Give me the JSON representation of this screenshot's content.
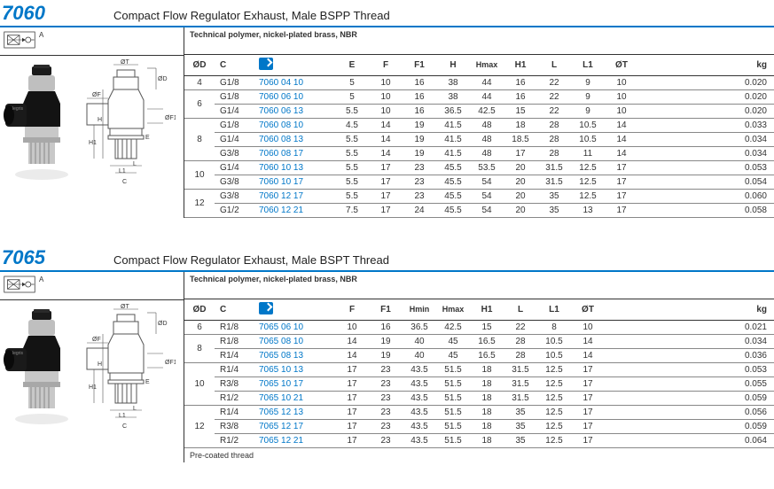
{
  "colors": {
    "accent": "#0077c8",
    "rule": "#333333"
  },
  "sections": [
    {
      "series": "7060",
      "title": "Compact Flow Regulator Exhaust, Male BSPP Thread",
      "material": "Technical polymer, nickel-plated brass, NBR",
      "columns": [
        "ØD",
        "C",
        "",
        "E",
        "F",
        "F1",
        "H",
        "H\nmax",
        "H1",
        "L",
        "L1",
        "ØT",
        "kg"
      ],
      "footnote": "",
      "groups": [
        {
          "od": "4",
          "rows": [
            [
              "G1/8",
              "7060 04 10",
              "5",
              "10",
              "16",
              "38",
              "44",
              "16",
              "22",
              "9",
              "10",
              "0.020"
            ]
          ]
        },
        {
          "od": "6",
          "rows": [
            [
              "G1/8",
              "7060 06 10",
              "5",
              "10",
              "16",
              "38",
              "44",
              "16",
              "22",
              "9",
              "10",
              "0.020"
            ],
            [
              "G1/4",
              "7060 06 13",
              "5.5",
              "10",
              "16",
              "36.5",
              "42.5",
              "15",
              "22",
              "9",
              "10",
              "0.020"
            ]
          ]
        },
        {
          "od": "8",
          "rows": [
            [
              "G1/8",
              "7060 08 10",
              "4.5",
              "14",
              "19",
              "41.5",
              "48",
              "18",
              "28",
              "10.5",
              "14",
              "0.033"
            ],
            [
              "G1/4",
              "7060 08 13",
              "5.5",
              "14",
              "19",
              "41.5",
              "48",
              "18.5",
              "28",
              "10.5",
              "14",
              "0.034"
            ],
            [
              "G3/8",
              "7060 08 17",
              "5.5",
              "14",
              "19",
              "41.5",
              "48",
              "17",
              "28",
              "11",
              "14",
              "0.034"
            ]
          ]
        },
        {
          "od": "10",
          "rows": [
            [
              "G1/4",
              "7060 10 13",
              "5.5",
              "17",
              "23",
              "45.5",
              "53.5",
              "20",
              "31.5",
              "12.5",
              "17",
              "0.053"
            ],
            [
              "G3/8",
              "7060 10 17",
              "5.5",
              "17",
              "23",
              "45.5",
              "54",
              "20",
              "31.5",
              "12.5",
              "17",
              "0.054"
            ]
          ]
        },
        {
          "od": "12",
          "rows": [
            [
              "G3/8",
              "7060 12 17",
              "5.5",
              "17",
              "23",
              "45.5",
              "54",
              "20",
              "35",
              "12.5",
              "17",
              "0.060"
            ],
            [
              "G1/2",
              "7060 12 21",
              "7.5",
              "17",
              "24",
              "45.5",
              "54",
              "20",
              "35",
              "13",
              "17",
              "0.058"
            ]
          ]
        }
      ]
    },
    {
      "series": "7065",
      "title": "Compact Flow Regulator Exhaust, Male BSPT Thread",
      "material": "Technical polymer, nickel-plated brass, NBR",
      "columns": [
        "ØD",
        "C",
        "",
        "F",
        "F1",
        "H\nmin",
        "H\nmax",
        "H1",
        "L",
        "L1",
        "ØT",
        "kg"
      ],
      "footnote": "Pre-coated thread",
      "groups": [
        {
          "od": "6",
          "rows": [
            [
              "R1/8",
              "7065 06 10",
              "10",
              "16",
              "36.5",
              "42.5",
              "15",
              "22",
              "8",
              "10",
              "0.021"
            ]
          ]
        },
        {
          "od": "8",
          "rows": [
            [
              "R1/8",
              "7065 08 10",
              "14",
              "19",
              "40",
              "45",
              "16.5",
              "28",
              "10.5",
              "14",
              "0.034"
            ],
            [
              "R1/4",
              "7065 08 13",
              "14",
              "19",
              "40",
              "45",
              "16.5",
              "28",
              "10.5",
              "14",
              "0.036"
            ]
          ]
        },
        {
          "od": "10",
          "rows": [
            [
              "R1/4",
              "7065 10 13",
              "17",
              "23",
              "43.5",
              "51.5",
              "18",
              "31.5",
              "12.5",
              "17",
              "0.053"
            ],
            [
              "R3/8",
              "7065 10 17",
              "17",
              "23",
              "43.5",
              "51.5",
              "18",
              "31.5",
              "12.5",
              "17",
              "0.055"
            ],
            [
              "R1/2",
              "7065 10 21",
              "17",
              "23",
              "43.5",
              "51.5",
              "18",
              "31.5",
              "12.5",
              "17",
              "0.059"
            ]
          ]
        },
        {
          "od": "12",
          "rows": [
            [
              "R1/4",
              "7065 12 13",
              "17",
              "23",
              "43.5",
              "51.5",
              "18",
              "35",
              "12.5",
              "17",
              "0.056"
            ],
            [
              "R3/8",
              "7065 12 17",
              "17",
              "23",
              "43.5",
              "51.5",
              "18",
              "35",
              "12.5",
              "17",
              "0.059"
            ],
            [
              "R1/2",
              "7065 12 21",
              "17",
              "23",
              "43.5",
              "51.5",
              "18",
              "35",
              "12.5",
              "17",
              "0.064"
            ]
          ]
        }
      ]
    }
  ],
  "diagram_labels": {
    "of": "ØF",
    "ot": "ØT",
    "od": "ØD",
    "h": "H",
    "h1": "H1",
    "of1": "ØF1",
    "e": "E",
    "l1": "L1",
    "l": "L",
    "c": "C",
    "a": "A"
  }
}
